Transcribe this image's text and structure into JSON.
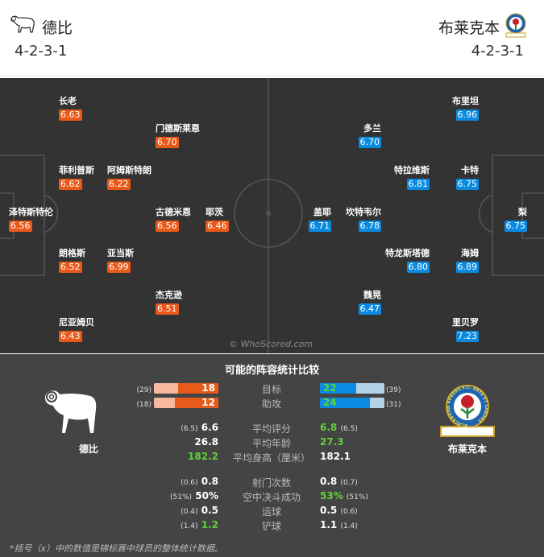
{
  "header": {
    "home": {
      "name": "德比",
      "formation": "4-2-3-1"
    },
    "away": {
      "name": "布莱克本",
      "formation": "4-2-3-1"
    }
  },
  "home_players": [
    {
      "name": "长老",
      "rating": "6.63"
    },
    {
      "name": "门德斯莱恩",
      "rating": "6.70"
    },
    {
      "name": "菲利普斯",
      "rating": "6.62"
    },
    {
      "name": "阿姆斯特朗",
      "rating": "6.22"
    },
    {
      "name": "泽特斯特伦",
      "rating": "6.56"
    },
    {
      "name": "古德米恩",
      "rating": "6.56"
    },
    {
      "name": "耶茨",
      "rating": "6.46"
    },
    {
      "name": "朗格斯",
      "rating": "6.52"
    },
    {
      "name": "亚当斯",
      "rating": "6.99"
    },
    {
      "name": "杰克逊",
      "rating": "6.51"
    },
    {
      "name": "尼亚姆贝",
      "rating": "6.43"
    }
  ],
  "away_players": [
    {
      "name": "布里坦",
      "rating": "6.96"
    },
    {
      "name": "多兰",
      "rating": "6.70"
    },
    {
      "name": "特拉维斯",
      "rating": "6.81"
    },
    {
      "name": "卡特",
      "rating": "6.75"
    },
    {
      "name": "盖耶",
      "rating": "6.71"
    },
    {
      "name": "坎特韦尔",
      "rating": "6.78"
    },
    {
      "name": "梨",
      "rating": "6.75"
    },
    {
      "name": "特龙斯塔德",
      "rating": "6.80"
    },
    {
      "name": "海姆",
      "rating": "6.89"
    },
    {
      "name": "魏晃",
      "rating": "6.47"
    },
    {
      "name": "里贝罗",
      "rating": "7.23"
    }
  ],
  "watermark": "© WhoScored.com",
  "stats": {
    "title": "可能的阵容统计比较",
    "home_name": "德比",
    "away_name": "布莱克本",
    "away_badge_text": "BLACKBURN ROVERS F.C. ARTE ET LABORE",
    "bars": [
      {
        "label": "目标",
        "home": "18",
        "home_total": "(29)",
        "home_fraction": 0.62,
        "away": "22",
        "away_total": "(39)",
        "away_fraction": 0.56
      },
      {
        "label": "助攻",
        "home": "12",
        "home_total": "(18)",
        "home_fraction": 0.67,
        "away": "24",
        "away_total": "(31)",
        "away_fraction": 0.77
      }
    ],
    "rows": [
      {
        "label": "平均评分",
        "home": "6.6",
        "home_p": "(6.5)",
        "away": "6.8",
        "away_p": "(6.5)",
        "better": "away"
      },
      {
        "label": "平均年龄",
        "home": "26.8",
        "home_p": "",
        "away": "27.3",
        "away_p": "",
        "better": "away"
      },
      {
        "label": "平均身高（厘米）",
        "home": "182.2",
        "home_p": "",
        "away": "182.1",
        "away_p": "",
        "better": "home"
      },
      {
        "label": "射门次数",
        "home": "0.8",
        "home_p": "(0.6)",
        "away": "0.8",
        "away_p": "(0.7)",
        "better": ""
      },
      {
        "label": "空中决斗成功",
        "home": "50%",
        "home_p": "(51%)",
        "away": "53%",
        "away_p": "(51%)",
        "better": "away"
      },
      {
        "label": "运球",
        "home": "0.5",
        "home_p": "(0.4)",
        "away": "0.5",
        "away_p": "(0.6)",
        "better": ""
      },
      {
        "label": "铲球",
        "home": "1.2",
        "home_p": "(1.4)",
        "away": "1.1",
        "away_p": "(1.4)",
        "better": "home"
      }
    ],
    "footnote": "*括号（x）中的数值是锦标赛中球员的整体统计数据。"
  },
  "colors": {
    "home": "#e8591a",
    "home_light": "#f6b9a0",
    "away": "#0a8ae0",
    "away_light": "#b3d4e8",
    "better": "#5fd23a"
  }
}
